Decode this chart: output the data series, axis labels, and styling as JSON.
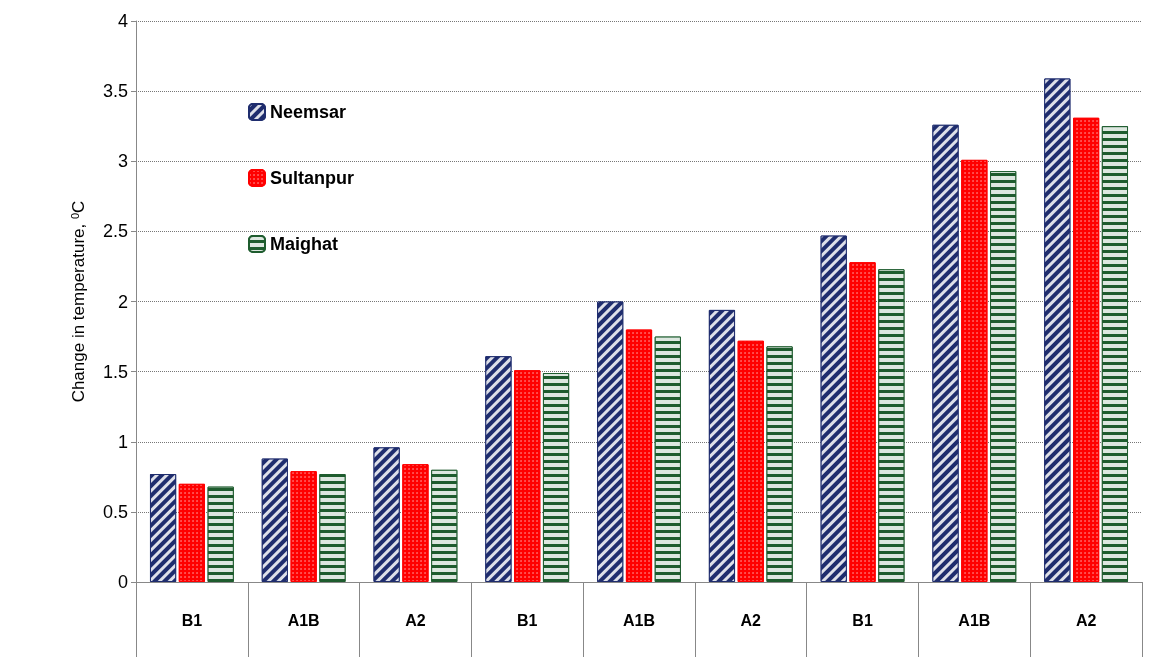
{
  "chart_data": {
    "type": "bar",
    "ylabel": "Change in temperature, $^{0}$C",
    "categories": [
      "B1",
      "A1B",
      "A2",
      "B1",
      "A1B",
      "A2",
      "B1",
      "A1B",
      "A2"
    ],
    "series": [
      {
        "name": "Neemsar",
        "color": "#1f2d6e",
        "values": [
          0.77,
          0.88,
          0.96,
          1.61,
          2.0,
          1.94,
          2.47,
          3.26,
          3.59
        ]
      },
      {
        "name": "Sultanpur",
        "color": "#ff0000",
        "values": [
          0.7,
          0.79,
          0.84,
          1.51,
          1.8,
          1.72,
          2.28,
          3.01,
          3.31
        ]
      },
      {
        "name": "Maighat",
        "color": "#1e5c2e",
        "values": [
          0.68,
          0.77,
          0.8,
          1.49,
          1.75,
          1.68,
          2.23,
          2.93,
          3.25
        ]
      }
    ],
    "ylim": [
      0,
      4
    ],
    "yticks": [
      0,
      0.5,
      1,
      1.5,
      2,
      2.5,
      3,
      3.5,
      4
    ],
    "grid": "y",
    "legend": "top left"
  }
}
